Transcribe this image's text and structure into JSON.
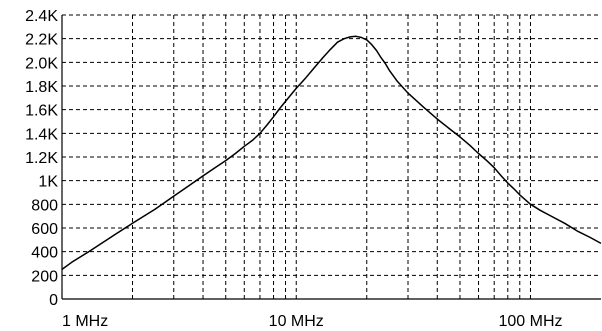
{
  "chart_data": {
    "type": "line",
    "title": "",
    "xlabel": "",
    "ylabel": "",
    "x_scale": "log",
    "xlim": [
      1,
      200
    ],
    "ylim": [
      0,
      2400
    ],
    "grid": true,
    "legend": "none",
    "y_ticks": [
      {
        "value": 0,
        "label": "0"
      },
      {
        "value": 200,
        "label": "200"
      },
      {
        "value": 400,
        "label": "400"
      },
      {
        "value": 600,
        "label": "600"
      },
      {
        "value": 800,
        "label": "800"
      },
      {
        "value": 1000,
        "label": "1K"
      },
      {
        "value": 1200,
        "label": "1.2K"
      },
      {
        "value": 1400,
        "label": "1.4K"
      },
      {
        "value": 1600,
        "label": "1.6K"
      },
      {
        "value": 1800,
        "label": "1.8K"
      },
      {
        "value": 2000,
        "label": "2.0K"
      },
      {
        "value": 2200,
        "label": "2.2K"
      },
      {
        "value": 2400,
        "label": "2.4K"
      }
    ],
    "x_ticks": [
      {
        "value": 1,
        "label": "1 MHz"
      },
      {
        "value": 10,
        "label": "10 MHz"
      },
      {
        "value": 100,
        "label": "100 MHz"
      }
    ],
    "x_minor": [
      2,
      3,
      4,
      5,
      6,
      7,
      8,
      9,
      20,
      30,
      40,
      50,
      60,
      70,
      80,
      90,
      200
    ],
    "series": [
      {
        "color": "#000000",
        "points": [
          [
            1,
            250
          ],
          [
            1.1,
            310
          ],
          [
            1.3,
            400
          ],
          [
            1.5,
            480
          ],
          [
            1.7,
            550
          ],
          [
            2,
            640
          ],
          [
            2.5,
            760
          ],
          [
            3,
            870
          ],
          [
            3.5,
            960
          ],
          [
            4,
            1040
          ],
          [
            4.5,
            1110
          ],
          [
            5,
            1170
          ],
          [
            5.5,
            1230
          ],
          [
            6,
            1290
          ],
          [
            6.5,
            1340
          ],
          [
            7,
            1400
          ],
          [
            7.5,
            1470
          ],
          [
            8,
            1540
          ],
          [
            8.5,
            1610
          ],
          [
            9,
            1670
          ],
          [
            10,
            1780
          ],
          [
            11,
            1870
          ],
          [
            12,
            1960
          ],
          [
            13,
            2040
          ],
          [
            14,
            2110
          ],
          [
            15,
            2170
          ],
          [
            16,
            2200
          ],
          [
            17,
            2215
          ],
          [
            18,
            2220
          ],
          [
            19,
            2210
          ],
          [
            20,
            2190
          ],
          [
            21,
            2150
          ],
          [
            22,
            2100
          ],
          [
            23,
            2040
          ],
          [
            24,
            1990
          ],
          [
            25,
            1930
          ],
          [
            27,
            1840
          ],
          [
            30,
            1740
          ],
          [
            35,
            1620
          ],
          [
            40,
            1520
          ],
          [
            45,
            1440
          ],
          [
            50,
            1370
          ],
          [
            55,
            1300
          ],
          [
            60,
            1230
          ],
          [
            65,
            1170
          ],
          [
            70,
            1110
          ],
          [
            75,
            1040
          ],
          [
            80,
            980
          ],
          [
            85,
            930
          ],
          [
            90,
            880
          ],
          [
            100,
            800
          ],
          [
            110,
            750
          ],
          [
            120,
            710
          ],
          [
            140,
            640
          ],
          [
            160,
            570
          ],
          [
            180,
            520
          ],
          [
            200,
            470
          ]
        ]
      }
    ]
  }
}
